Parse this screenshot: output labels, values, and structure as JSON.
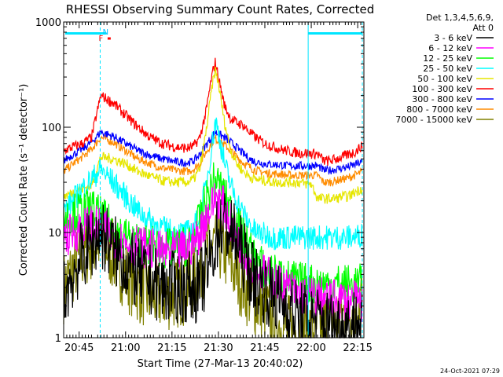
{
  "chart_data": {
    "type": "line",
    "title": "RHESSI Observing Summary Count Rates, Corrected",
    "xlabel": "Start Time (27-Mar-13 20:40:02)",
    "ylabel": "Corrected Count Rate (s⁻¹ detector⁻¹)",
    "ylog": true,
    "ylim": [
      1,
      1000
    ],
    "xlim_min": [
      0,
      97
    ],
    "x_ticks": [
      "20:45",
      "21:00",
      "21:15",
      "21:30",
      "21:45",
      "22:00",
      "22:15"
    ],
    "x_tick_min": [
      5,
      20,
      35,
      50,
      65,
      80,
      95
    ],
    "y_ticks": [
      "1",
      "10",
      "100",
      "1000"
    ],
    "y_tick_values": [
      1,
      10,
      100,
      1000
    ],
    "legend_title": [
      "Det 1,3,4,5,6,9,",
      "Att 0"
    ],
    "legend_position": "outside-right",
    "timestamp": "24-Oct-2021 07:29",
    "flags": [
      {
        "label": "N",
        "color": "#00bfff"
      },
      {
        "label": "F",
        "color": "#ff0000"
      }
    ],
    "night_bars": [
      {
        "x_start": 0.5,
        "x_end": 13.8,
        "level": 780,
        "color": "#00e5ff"
      },
      {
        "x_start": 79,
        "x_end": 96.5,
        "level": 780,
        "color": "#00e5ff"
      }
    ],
    "night_marks": [
      {
        "x": 11.8,
        "style": "dashed"
      },
      {
        "x": 79,
        "style": "solid"
      },
      {
        "x": 96.5,
        "style": "dashed"
      }
    ],
    "series": [
      {
        "name": "3 - 6 keV",
        "color": "#000000",
        "band": 0.35,
        "x": [
          0,
          3,
          6,
          9,
          12,
          16,
          20,
          24,
          28,
          32,
          36,
          40,
          42,
          44,
          46,
          48,
          49,
          50,
          52,
          54,
          56,
          58,
          60,
          62,
          65,
          68,
          70,
          72,
          74,
          76,
          78,
          80,
          82,
          84,
          86,
          88,
          90,
          92,
          94,
          96
        ],
        "y": [
          2.5,
          4,
          6,
          8,
          10,
          7,
          5,
          4,
          3.5,
          3,
          3,
          3,
          3,
          3.2,
          4,
          6,
          8,
          11,
          12,
          10,
          8,
          6,
          4.5,
          3.5,
          3,
          2.5,
          2.2,
          2,
          1.8,
          1.6,
          1.5,
          1.5,
          1.4,
          1.4,
          1.3,
          1.3,
          1.3,
          1.3,
          1.4,
          1.4
        ]
      },
      {
        "name": "6 - 12 keV",
        "color": "#ff00ff",
        "band": 0.2,
        "x": [
          0,
          3,
          6,
          9,
          12,
          16,
          20,
          24,
          28,
          32,
          36,
          40,
          42,
          44,
          46,
          48,
          49,
          50,
          52,
          54,
          56,
          58,
          60,
          62,
          65,
          68,
          70,
          72,
          74,
          76,
          78,
          80,
          82,
          84,
          86,
          88,
          90,
          92,
          94,
          96
        ],
        "y": [
          9,
          10,
          11,
          12,
          11,
          9,
          8,
          7.5,
          7,
          6.5,
          6.5,
          7,
          8,
          10,
          14,
          18,
          22,
          21,
          17,
          12,
          9,
          7,
          5.5,
          4.5,
          4,
          3.5,
          3.2,
          3,
          2.8,
          2.6,
          2.5,
          2.5,
          2.4,
          2.4,
          2.3,
          2.3,
          2.3,
          2.2,
          2.2,
          2.2
        ]
      },
      {
        "name": "12 - 25 keV",
        "color": "#00ff00",
        "band": 0.2,
        "x": [
          0,
          3,
          6,
          9,
          12,
          16,
          20,
          24,
          28,
          32,
          36,
          40,
          42,
          44,
          46,
          48,
          49,
          50,
          52,
          54,
          56,
          58,
          60,
          62,
          65,
          68,
          70,
          72,
          74,
          76,
          78,
          80,
          82,
          84,
          86,
          88,
          90,
          92,
          94,
          96
        ],
        "y": [
          14,
          15,
          16,
          17,
          14,
          11,
          9,
          8,
          7.5,
          7,
          7,
          7.5,
          9,
          13,
          20,
          28,
          32,
          29,
          22,
          16,
          12,
          9,
          7,
          5.5,
          4.5,
          4,
          3.8,
          3.6,
          3.5,
          3.4,
          3.3,
          3.3,
          3.2,
          3.2,
          3.2,
          3.2,
          3.2,
          3.2,
          3.2,
          3.2
        ]
      },
      {
        "name": "25 - 50 keV",
        "color": "#00ffff",
        "band": 0.12,
        "x": [
          0,
          3,
          6,
          9,
          12,
          16,
          20,
          24,
          28,
          32,
          36,
          40,
          42,
          44,
          46,
          48,
          49,
          50,
          52,
          54,
          56,
          58,
          60,
          62,
          65,
          68,
          70,
          72,
          74,
          76,
          78,
          80,
          82,
          84,
          86,
          88,
          90,
          92,
          94,
          96
        ],
        "y": [
          16,
          20,
          26,
          32,
          40,
          30,
          22,
          16,
          13,
          11,
          10,
          10,
          11,
          15,
          28,
          70,
          115,
          90,
          45,
          28,
          20,
          15,
          12,
          10,
          9.5,
          9,
          9,
          9,
          9,
          9,
          9,
          9,
          9,
          9,
          9,
          9,
          9,
          9,
          9,
          9.5
        ]
      },
      {
        "name": "50 - 100 keV",
        "color": "#e6e600",
        "band": 0.05,
        "x": [
          0,
          3,
          6,
          9,
          12,
          16,
          20,
          24,
          28,
          32,
          36,
          40,
          42,
          44,
          46,
          48,
          49,
          50,
          52,
          54,
          56,
          58,
          60,
          62,
          65,
          68,
          70,
          72,
          74,
          76,
          78,
          80,
          82,
          84,
          86,
          88,
          90,
          92,
          94,
          96
        ],
        "y": [
          22,
          24,
          26,
          28,
          52,
          50,
          45,
          38,
          34,
          31,
          30,
          30,
          32,
          40,
          90,
          250,
          350,
          260,
          110,
          60,
          45,
          38,
          34,
          32,
          31,
          30,
          30,
          30,
          30,
          30,
          29,
          29,
          21,
          21,
          21,
          21,
          22,
          22,
          24,
          26
        ]
      },
      {
        "name": "100 - 300 keV",
        "color": "#ff0000",
        "band": 0.05,
        "x": [
          0,
          3,
          6,
          9,
          12,
          16,
          20,
          24,
          28,
          32,
          36,
          40,
          42,
          44,
          46,
          48,
          49,
          50,
          52,
          54,
          56,
          58,
          60,
          62,
          65,
          68,
          70,
          72,
          74,
          76,
          78,
          80,
          82,
          84,
          86,
          88,
          90,
          92,
          94,
          96
        ],
        "y": [
          60,
          65,
          70,
          80,
          200,
          170,
          130,
          100,
          80,
          70,
          65,
          63,
          66,
          80,
          140,
          320,
          420,
          300,
          160,
          120,
          110,
          105,
          90,
          80,
          70,
          65,
          62,
          60,
          58,
          57,
          57,
          56,
          56,
          48,
          48,
          50,
          52,
          55,
          58,
          65
        ]
      },
      {
        "name": "300 - 800 keV",
        "color": "#0000ff",
        "band": 0.04,
        "x": [
          0,
          3,
          6,
          9,
          12,
          16,
          20,
          24,
          28,
          32,
          36,
          40,
          42,
          44,
          46,
          48,
          49,
          50,
          52,
          54,
          56,
          58,
          60,
          62,
          65,
          68,
          70,
          72,
          74,
          76,
          78,
          80,
          82,
          84,
          86,
          88,
          90,
          92,
          94,
          96
        ],
        "y": [
          48,
          55,
          62,
          72,
          90,
          82,
          70,
          60,
          54,
          50,
          47,
          46,
          48,
          55,
          68,
          82,
          90,
          86,
          80,
          72,
          64,
          56,
          50,
          47,
          45,
          44,
          44,
          43,
          43,
          43,
          43,
          43,
          43,
          39,
          39,
          40,
          41,
          42,
          44,
          46
        ]
      },
      {
        "name": "800 - 7000 keV",
        "color": "#ff8c00",
        "band": 0.04,
        "x": [
          0,
          3,
          6,
          9,
          12,
          16,
          20,
          24,
          28,
          32,
          36,
          40,
          42,
          44,
          46,
          48,
          49,
          50,
          52,
          54,
          56,
          58,
          60,
          62,
          65,
          68,
          70,
          72,
          74,
          76,
          78,
          80,
          82,
          84,
          86,
          88,
          90,
          92,
          94,
          96
        ],
        "y": [
          38,
          45,
          52,
          62,
          80,
          72,
          60,
          50,
          45,
          41,
          39,
          38,
          40,
          45,
          58,
          72,
          78,
          74,
          68,
          60,
          52,
          46,
          42,
          39,
          37,
          36,
          36,
          35,
          35,
          35,
          35,
          35,
          35,
          30,
          30,
          31,
          32,
          33,
          35,
          37
        ]
      },
      {
        "name": "7000 - 15000 keV",
        "color": "#808000",
        "band": 0.35,
        "x": [
          0,
          3,
          6,
          9,
          12,
          16,
          20,
          24,
          28,
          32,
          36,
          40,
          42,
          44,
          46,
          48,
          49,
          50,
          52,
          54,
          56,
          58,
          60,
          62,
          65,
          68,
          70,
          72,
          74,
          76,
          78,
          80,
          82,
          84,
          86,
          88,
          90,
          92,
          94,
          96
        ],
        "y": [
          3,
          4.5,
          6,
          7.5,
          8.5,
          6,
          4,
          3,
          2.5,
          2.5,
          2.6,
          3,
          3.5,
          4.5,
          6,
          7.5,
          8,
          7.5,
          6.5,
          5,
          4,
          3.2,
          2.6,
          2.2,
          1.8,
          1.5,
          1.3,
          1.2,
          1.2,
          1.2,
          1.2,
          1.2,
          1.2,
          1.3,
          1.4,
          1.5,
          1.6,
          1.8,
          2,
          2.5
        ]
      }
    ]
  }
}
